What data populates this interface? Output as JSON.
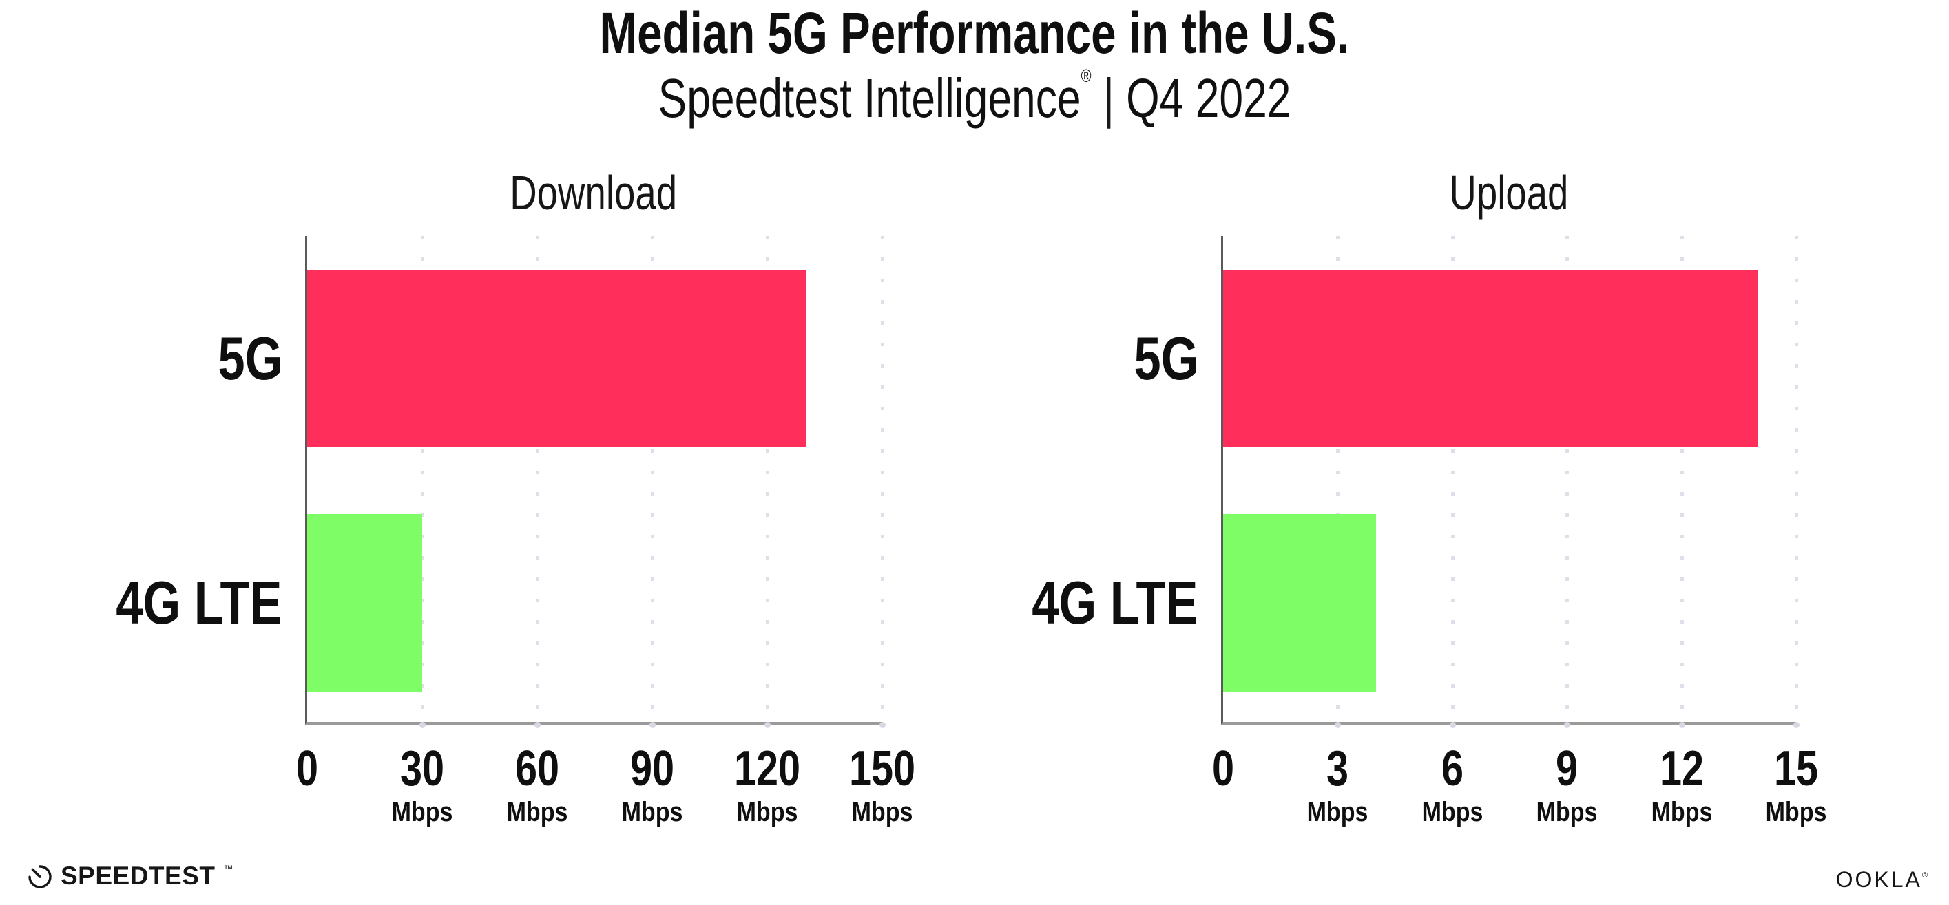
{
  "header": {
    "title": "Median 5G Performance in the U.S.",
    "subtitle_brand": "Speedtest Intelligence",
    "subtitle_reg": "®",
    "subtitle_divider": "|",
    "subtitle_period": "Q4 2022"
  },
  "footer": {
    "speedtest_label": "SPEEDTEST",
    "speedtest_tm": "™",
    "ookla_label": "OOKLA",
    "ookla_reg": "®"
  },
  "colors": {
    "bar_5g": "#FF2E5B",
    "bar_4g_lte": "#7EFD67",
    "gridline": "#DFDFE9",
    "axis_spine": "#5A5A5A",
    "axis_baseline": "#9A9A9A",
    "text": "#0F0F0F"
  },
  "chart_data": [
    {
      "type": "bar",
      "orientation": "horizontal",
      "title": "Download",
      "categories": [
        "5G",
        "4G LTE"
      ],
      "values": [
        130,
        30
      ],
      "unit": "Mbps",
      "xlim": [
        0,
        150
      ],
      "xticks": [
        0,
        30,
        60,
        90,
        120,
        150
      ],
      "grid": "vertical-dotted",
      "legend": "none",
      "bar_colors": [
        "#FF2E5B",
        "#7EFD67"
      ]
    },
    {
      "type": "bar",
      "orientation": "horizontal",
      "title": "Upload",
      "categories": [
        "5G",
        "4G LTE"
      ],
      "values": [
        14,
        4
      ],
      "unit": "Mbps",
      "xlim": [
        0,
        15
      ],
      "xticks": [
        0,
        3,
        6,
        9,
        12,
        15
      ],
      "grid": "vertical-dotted",
      "legend": "none",
      "bar_colors": [
        "#FF2E5B",
        "#7EFD67"
      ]
    }
  ]
}
